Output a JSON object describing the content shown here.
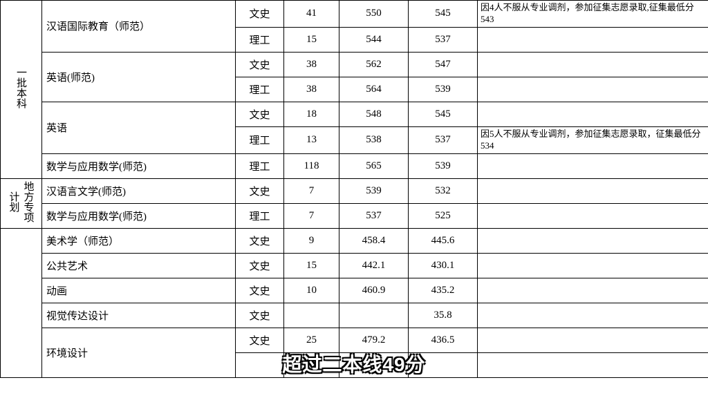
{
  "col_widths": [
    "60px",
    "280px",
    "70px",
    "80px",
    "100px",
    "100px",
    "334px"
  ],
  "rows": [
    {
      "cat": "一批本科",
      "cat_rowspan": 7,
      "major": "汉语国际教育（师范）",
      "major_rowspan": 2,
      "type": "文史",
      "c1": "41",
      "c2": "550",
      "c3": "545",
      "remark": "因4人不服从专业调剂，参加征集志愿录取,征集最低分543"
    },
    {
      "type": "理工",
      "c1": "15",
      "c2": "544",
      "c3": "537",
      "remark": ""
    },
    {
      "major": "英语(师范)",
      "major_rowspan": 2,
      "type": "文史",
      "c1": "38",
      "c2": "562",
      "c3": "547",
      "remark": ""
    },
    {
      "type": "理工",
      "c1": "38",
      "c2": "564",
      "c3": "539",
      "remark": ""
    },
    {
      "major": "英语",
      "major_rowspan": 2,
      "type": "文史",
      "c1": "18",
      "c2": "548",
      "c3": "545",
      "remark": ""
    },
    {
      "type": "理工",
      "c1": "13",
      "c2": "538",
      "c3": "537",
      "remark": "因5人不服从专业调剂，参加征集志愿录取，征集最低分534"
    },
    {
      "major": "数学与应用数学(师范)",
      "major_rowspan": 1,
      "type": "理工",
      "c1": "118",
      "c2": "565",
      "c3": "539",
      "remark": ""
    },
    {
      "cat": "地方专项计划",
      "cat_rowspan": 2,
      "major": "汉语言文学(师范)",
      "major_rowspan": 1,
      "type": "文史",
      "c1": "7",
      "c2": "539",
      "c3": "532",
      "remark": ""
    },
    {
      "major": "数学与应用数学(师范)",
      "major_rowspan": 1,
      "type": "理工",
      "c1": "7",
      "c2": "537",
      "c3": "525",
      "remark": ""
    },
    {
      "cat": "",
      "cat_rowspan": 7,
      "major": "美术学（师范）",
      "major_rowspan": 1,
      "type": "文史",
      "c1": "9",
      "c2": "458.4",
      "c3": "445.6",
      "remark": ""
    },
    {
      "major": "公共艺术",
      "major_rowspan": 1,
      "type": "文史",
      "c1": "15",
      "c2": "442.1",
      "c3": "430.1",
      "remark": ""
    },
    {
      "major": "动画",
      "major_rowspan": 1,
      "type": "文史",
      "c1": "10",
      "c2": "460.9",
      "c3": "435.2",
      "remark": ""
    },
    {
      "major": "视觉传达设计",
      "major_rowspan": 1,
      "type": "文史",
      "c1": "",
      "c2": "",
      "c3": "35.8",
      "remark": ""
    },
    {
      "major": "环境设计",
      "major_rowspan": 2,
      "type": "文史",
      "c1": "25",
      "c2": "479.2",
      "c3": "436.5",
      "remark": ""
    },
    {
      "type": "",
      "c1": "",
      "c2": "",
      "c3": "",
      "remark": ""
    }
  ],
  "caption_text": "超过二本线49分"
}
